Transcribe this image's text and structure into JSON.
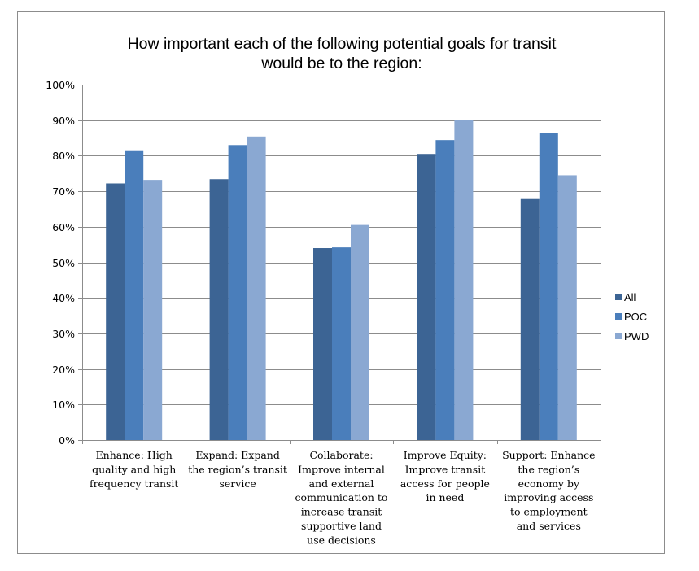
{
  "chart_data": {
    "type": "bar",
    "title": "How important each of the following potential goals for transit would be to the region:",
    "title_lines": [
      "How important each of the following potential goals for transit",
      "would be to the region:"
    ],
    "xlabel": "",
    "ylabel": "",
    "ylim": [
      0,
      100
    ],
    "y_ticks": [
      "0%",
      "10%",
      "20%",
      "30%",
      "40%",
      "50%",
      "60%",
      "70%",
      "80%",
      "90%",
      "100%"
    ],
    "grid": true,
    "legend_position": "right",
    "categories": [
      "Enhance: High quality and high frequency transit",
      "Expand: Expand the region’s transit service",
      "Collaborate: Improve internal and external communication to increase transit supportive land use decisions",
      "Improve Equity: Improve transit access for people in need",
      "Support: Enhance the region’s economy by improving access to employment and services"
    ],
    "category_lines": [
      [
        "Enhance: High",
        "quality and high",
        "frequency transit"
      ],
      [
        "Expand: Expand",
        "the region’s transit",
        "service"
      ],
      [
        "Collaborate:",
        "Improve internal",
        "and external",
        "communication to",
        "increase transit",
        "supportive land",
        "use decisions"
      ],
      [
        "Improve Equity:",
        "Improve transit",
        "access for people",
        "in need"
      ],
      [
        "Support: Enhance",
        "the region’s",
        "economy by",
        "improving access",
        "to employment",
        "and services"
      ]
    ],
    "series": [
      {
        "name": "All",
        "color": "#3c6494",
        "values": [
          72.2,
          73.4,
          54.0,
          80.5,
          67.8
        ]
      },
      {
        "name": "POC",
        "color": "#4a7ebb",
        "values": [
          81.3,
          83.0,
          54.2,
          84.4,
          86.4
        ]
      },
      {
        "name": "PWD",
        "color": "#8aa8d2",
        "values": [
          73.2,
          85.4,
          60.5,
          90.0,
          74.5
        ]
      }
    ]
  }
}
